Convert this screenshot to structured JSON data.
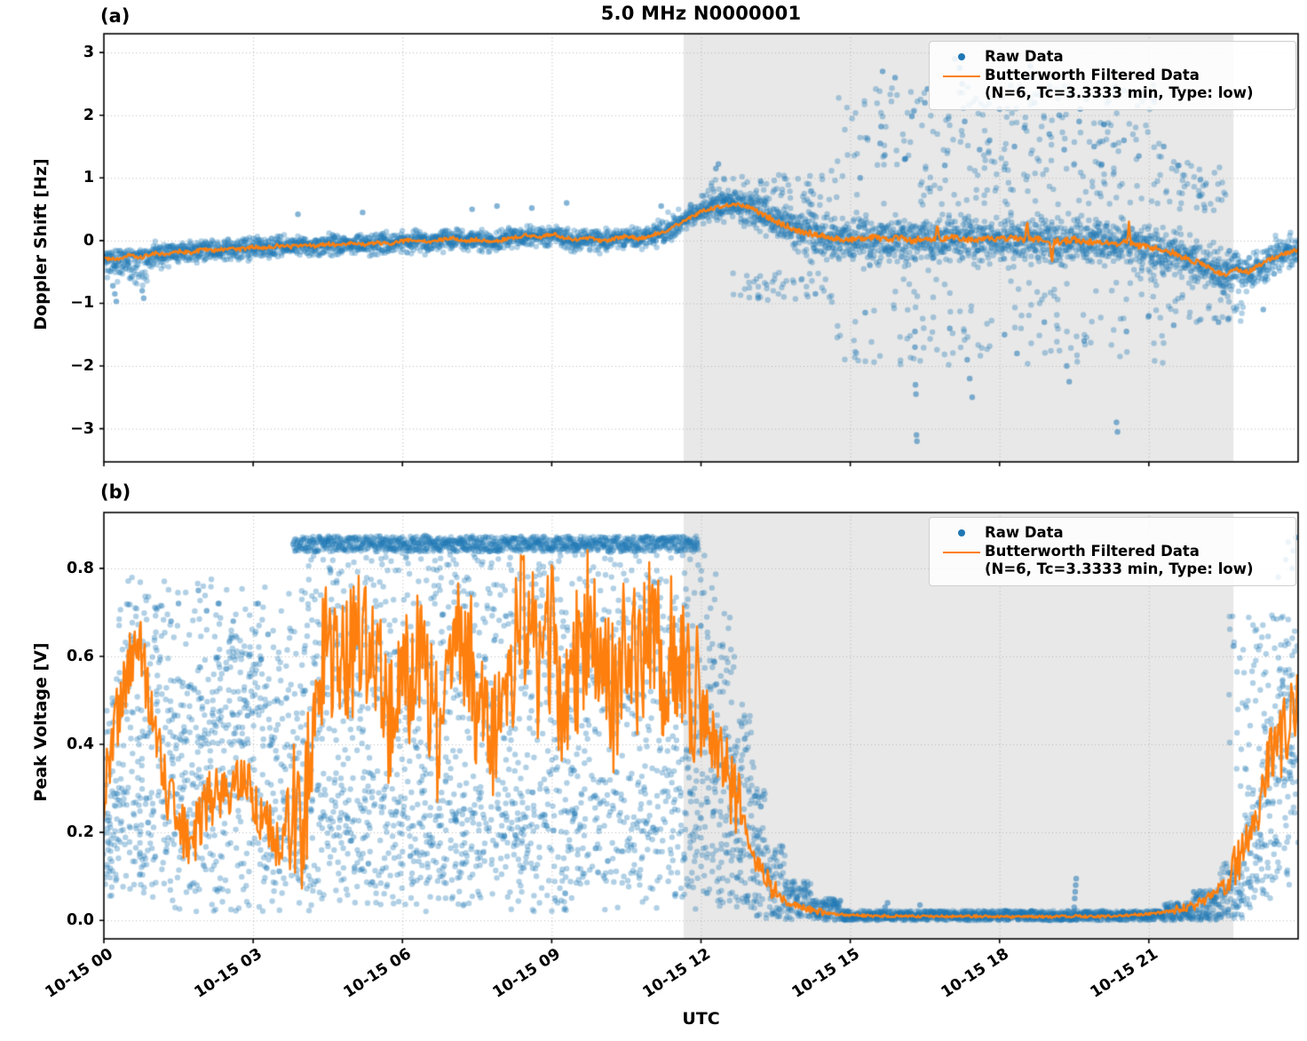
{
  "chart_data": {
    "type": "scatter",
    "title": "5.0 MHz N0000001",
    "xlabel": "UTC",
    "xlim_hours": [
      0,
      24
    ],
    "grid": "dotted",
    "legend_position": "upper right",
    "legend": {
      "raw_label": "Raw Data",
      "filtered_label": "Butterworth Filtered Data",
      "filtered_sublabel": "(N=6, Tc=3.3333 min, Type: low)"
    },
    "colors": {
      "raw": "#1f77b4",
      "filtered": "#ff7f0e",
      "shade": "#e8e8e8",
      "grid": "#b8b8b8",
      "axes": "#000000"
    },
    "xticks": {
      "hours": [
        0,
        3,
        6,
        9,
        12,
        15,
        18,
        21
      ],
      "labels": [
        "10-15 00",
        "10-15 03",
        "10-15 06",
        "10-15 09",
        "10-15 12",
        "10-15 15",
        "10-15 18",
        "10-15 21"
      ]
    },
    "shade_span_hours": [
      11.65,
      22.7
    ],
    "panels": [
      {
        "id": "a",
        "label": "(a)",
        "ylabel": "Doppler Shift [Hz]",
        "ylim": [
          -3.53,
          3.3
        ],
        "yticks": [
          3,
          2,
          1,
          0,
          -1,
          -2,
          -3
        ],
        "ytick_labels": [
          "3",
          "2",
          "1",
          "0",
          "−1",
          "−2",
          "−3"
        ],
        "seed": 11,
        "filtered": {
          "dt": 0.25,
          "v": [
            -0.28,
            -0.3,
            -0.24,
            -0.27,
            -0.2,
            -0.22,
            -0.17,
            -0.19,
            -0.14,
            -0.16,
            -0.12,
            -0.14,
            -0.1,
            -0.12,
            -0.08,
            -0.1,
            -0.06,
            -0.09,
            -0.05,
            -0.08,
            -0.04,
            -0.07,
            -0.03,
            -0.06,
            -0.01,
            0.02,
            -0.03,
            0.01,
            0.04,
            -0.01,
            0.02,
            -0.03,
            0.01,
            0.05,
            0.09,
            0.04,
            0.11,
            0.05,
            0.01,
            0.04,
            -0.01,
            0.03,
            0.07,
            0.03,
            0.09,
            0.14,
            0.24,
            0.36,
            0.46,
            0.52,
            0.56,
            0.58,
            0.52,
            0.42,
            0.31,
            0.22,
            0.15,
            0.1,
            0.06,
            0.04,
            0.02,
            0.03,
            0.05,
            0.02,
            0.04,
            0.0,
            0.05,
            0.02,
            0.06,
            0.03,
            0.0,
            0.04,
            0.02,
            0.05,
            0.0,
            0.03,
            0.0,
            -0.02,
            0.02,
            -0.03,
            0.0,
            -0.05,
            -0.03,
            -0.08,
            -0.1,
            -0.15,
            -0.2,
            -0.28,
            -0.35,
            -0.45,
            -0.55,
            -0.45,
            -0.5,
            -0.38,
            -0.27,
            -0.2,
            -0.15
          ],
          "osc_segments": [
            [
              0,
              13,
              0.03
            ],
            [
              13,
              22,
              0.05
            ],
            [
              22,
              24,
              0.035
            ]
          ],
          "spikes": [
            [
              16.75,
              0.3
            ],
            [
              18.55,
              0.38
            ],
            [
              19.05,
              -0.37
            ],
            [
              20.6,
              0.32
            ]
          ]
        },
        "raw": {
          "hw_segments": [
            [
              0,
              0.4,
              0.22,
              0.45
            ],
            [
              0.4,
              0.9,
              0.22,
              0.55
            ],
            [
              0.9,
              1.5,
              0.22,
              0.35
            ],
            [
              1.5,
              11,
              0.22,
              0.25
            ],
            [
              11,
              12,
              0.3,
              0.28
            ],
            [
              12,
              13,
              0.35,
              0.35
            ],
            [
              13,
              14,
              0.45,
              0.45
            ],
            [
              14,
              22.7,
              0.5,
              0.55
            ],
            [
              22.7,
              24,
              0.35,
              0.4
            ]
          ],
          "sparse": [
            {
              "t0": 14.6,
              "t1": 21.3,
              "lo": 0.55,
              "hi": 2.5,
              "n": 260
            },
            {
              "t0": 14.6,
              "t1": 21.3,
              "lo": -2.0,
              "hi": -0.6,
              "n": 130
            },
            {
              "t0": 12.1,
              "t1": 14.6,
              "lo": 0.5,
              "hi": 1.05,
              "n": 70
            },
            {
              "t0": 12.6,
              "t1": 14.6,
              "lo": -0.95,
              "hi": -0.5,
              "n": 45
            },
            {
              "t0": 21.3,
              "t1": 23.0,
              "lo": -1.3,
              "hi": -0.55,
              "n": 40
            },
            {
              "t0": 21.3,
              "t1": 22.6,
              "lo": 0.45,
              "hi": 1.3,
              "n": 45
            }
          ],
          "outliers": [
            [
              0.18,
              -0.72
            ],
            [
              0.22,
              -0.85
            ],
            [
              0.25,
              -0.97
            ],
            [
              0.77,
              -0.8
            ],
            [
              0.8,
              -0.92
            ],
            [
              3.9,
              0.42
            ],
            [
              5.2,
              0.45
            ],
            [
              7.4,
              0.5
            ],
            [
              7.9,
              0.55
            ],
            [
              8.6,
              0.52
            ],
            [
              9.3,
              0.6
            ],
            [
              11.2,
              0.55
            ],
            [
              12.3,
              1.15
            ],
            [
              12.35,
              1.22
            ],
            [
              13.2,
              0.95
            ],
            [
              14.3,
              -0.85
            ],
            [
              15.2,
              1.0
            ],
            [
              15.3,
              -1.15
            ],
            [
              15.6,
              1.55
            ],
            [
              15.62,
              1.82
            ],
            [
              15.65,
              2.7
            ],
            [
              15.9,
              2.6
            ],
            [
              16.1,
              1.3
            ],
            [
              16.3,
              -1.45
            ],
            [
              16.3,
              -1.7
            ],
            [
              16.31,
              -2.3
            ],
            [
              16.32,
              -2.45
            ],
            [
              16.33,
              -3.1
            ],
            [
              16.34,
              -3.2
            ],
            [
              16.5,
              2.2
            ],
            [
              16.55,
              2.42
            ],
            [
              16.9,
              1.2
            ],
            [
              17.0,
              -1.4
            ],
            [
              17.1,
              2.9
            ],
            [
              17.2,
              2.75
            ],
            [
              17.25,
              2.5
            ],
            [
              17.3,
              1.9
            ],
            [
              17.35,
              -1.9
            ],
            [
              17.4,
              -2.2
            ],
            [
              17.45,
              -2.5
            ],
            [
              17.6,
              1.45
            ],
            [
              17.8,
              1.6
            ],
            [
              17.85,
              2.95
            ],
            [
              18.0,
              2.1
            ],
            [
              18.05,
              2.3
            ],
            [
              18.1,
              -1.5
            ],
            [
              18.3,
              1.5
            ],
            [
              18.35,
              -1.8
            ],
            [
              18.5,
              1.8
            ],
            [
              18.6,
              2.6
            ],
            [
              18.62,
              2.78
            ],
            [
              18.7,
              2.2
            ],
            [
              18.9,
              -1.3
            ],
            [
              19.0,
              1.7
            ],
            [
              19.2,
              2.0
            ],
            [
              19.3,
              1.45
            ],
            [
              19.35,
              -2.0
            ],
            [
              19.4,
              -2.25
            ],
            [
              19.6,
              1.9
            ],
            [
              19.62,
              2.1
            ],
            [
              19.7,
              -1.6
            ],
            [
              19.9,
              1.5
            ],
            [
              20.1,
              1.85
            ],
            [
              20.3,
              2.7
            ],
            [
              20.32,
              2.45
            ],
            [
              20.35,
              -2.9
            ],
            [
              20.37,
              -3.05
            ],
            [
              20.5,
              1.6
            ],
            [
              20.55,
              -1.45
            ],
            [
              20.8,
              1.35
            ],
            [
              21.0,
              -1.2
            ],
            [
              21.3,
              1.5
            ],
            [
              21.5,
              -1.35
            ],
            [
              21.6,
              1.2
            ],
            [
              22.4,
              -1.3
            ],
            [
              23.3,
              -1.1
            ]
          ]
        }
      },
      {
        "id": "b",
        "label": "(b)",
        "ylabel": "Peak Voltage [V]",
        "ylim": [
          -0.042,
          0.927
        ],
        "yticks": [
          0.8,
          0.6,
          0.4,
          0.2,
          0.0
        ],
        "ytick_labels": [
          "0.8",
          "0.6",
          "0.4",
          "0.2",
          "0.0"
        ],
        "seed": 29,
        "clamp_lo": 0.002,
        "filtered": {
          "dt": 0.25,
          "v": [
            0.3,
            0.45,
            0.58,
            0.62,
            0.45,
            0.3,
            0.22,
            0.18,
            0.25,
            0.3,
            0.27,
            0.33,
            0.28,
            0.22,
            0.18,
            0.25,
            0.2,
            0.52,
            0.65,
            0.55,
            0.6,
            0.68,
            0.54,
            0.44,
            0.5,
            0.62,
            0.55,
            0.4,
            0.55,
            0.66,
            0.5,
            0.36,
            0.46,
            0.6,
            0.72,
            0.55,
            0.65,
            0.46,
            0.58,
            0.7,
            0.6,
            0.5,
            0.65,
            0.55,
            0.68,
            0.58,
            0.64,
            0.55,
            0.5,
            0.42,
            0.34,
            0.26,
            0.17,
            0.1,
            0.06,
            0.04,
            0.03,
            0.022,
            0.017,
            0.014,
            0.012,
            0.011,
            0.01,
            0.01,
            0.01,
            0.009,
            0.009,
            0.009,
            0.009,
            0.009,
            0.009,
            0.009,
            0.008,
            0.008,
            0.008,
            0.008,
            0.008,
            0.009,
            0.01,
            0.009,
            0.009,
            0.01,
            0.012,
            0.013,
            0.015,
            0.018,
            0.022,
            0.028,
            0.038,
            0.055,
            0.085,
            0.125,
            0.18,
            0.27,
            0.37,
            0.44,
            0.48
          ],
          "osc_segments": [
            [
              0,
              1,
              0.08
            ],
            [
              1,
              3.7,
              0.07
            ],
            [
              3.7,
              12,
              0.17
            ],
            [
              12,
              12.8,
              0.09
            ],
            [
              12.8,
              13.5,
              0.03
            ],
            [
              13.5,
              14.5,
              0.008
            ],
            [
              14.5,
              21.5,
              0.003
            ],
            [
              21.5,
              22.5,
              0.012
            ],
            [
              22.5,
              23.2,
              0.05
            ],
            [
              23.2,
              24,
              0.09
            ]
          ],
          "spikes": []
        },
        "raw": {
          "band_segments": [
            [
              0,
              0.3,
              0.08,
              0.55
            ],
            [
              0.3,
              1.0,
              0.1,
              0.78
            ],
            [
              1.0,
              1.3,
              0.05,
              0.72
            ],
            [
              1.3,
              2.2,
              0.02,
              0.55
            ],
            [
              2.2,
              3.2,
              0.02,
              0.65
            ],
            [
              3.2,
              3.7,
              0.02,
              0.55
            ],
            [
              3.7,
              4.1,
              0.08,
              0.75
            ],
            [
              4.1,
              11.9,
              0.08,
              0.875
            ],
            [
              11.9,
              12.3,
              0.06,
              0.875
            ],
            [
              12.3,
              12.7,
              0.04,
              0.72
            ],
            [
              12.7,
              13.0,
              0.02,
              0.5
            ],
            [
              13.0,
              13.3,
              0.01,
              0.3
            ],
            [
              13.3,
              13.7,
              0.005,
              0.17
            ],
            [
              13.7,
              14.2,
              0.002,
              0.09
            ],
            [
              14.2,
              14.8,
              0.0,
              0.05
            ],
            [
              14.8,
              21.3,
              0.0,
              0.022
            ],
            [
              21.3,
              21.9,
              0.0,
              0.04
            ],
            [
              21.9,
              22.4,
              0.0,
              0.07
            ],
            [
              22.4,
              22.9,
              0.005,
              0.13
            ],
            [
              22.9,
              23.3,
              0.02,
              0.3
            ],
            [
              23.3,
              23.6,
              0.05,
              0.45
            ],
            [
              23.6,
              23.85,
              0.08,
              0.6
            ],
            [
              23.85,
              24,
              0.12,
              0.68
            ]
          ],
          "cap": {
            "t0": 3.8,
            "t1": 11.95,
            "v": 0.873,
            "jitter": 0.035,
            "step": 0.008
          },
          "sparse": [
            {
              "t0": 0.05,
              "t1": 1.0,
              "lo": 0.05,
              "hi": 0.3,
              "n": 60
            },
            {
              "t0": 1.0,
              "t1": 3.7,
              "lo": 0.4,
              "hi": 0.78,
              "n": 140
            },
            {
              "t0": 3.8,
              "t1": 12.0,
              "lo": 0.02,
              "hi": 0.3,
              "n": 420
            },
            {
              "t0": 12.0,
              "t1": 13.2,
              "lo": 0.02,
              "hi": 0.4,
              "n": 80
            },
            {
              "t0": 22.6,
              "t1": 24.0,
              "lo": 0.3,
              "hi": 0.7,
              "n": 90
            }
          ],
          "outliers": [
            [
              1.35,
              0.68
            ],
            [
              1.5,
              0.72
            ],
            [
              1.9,
              0.75
            ],
            [
              2.3,
              0.72
            ],
            [
              2.6,
              0.68
            ],
            [
              3.1,
              0.72
            ],
            [
              3.3,
              0.65
            ],
            [
              15.7,
              0.03
            ],
            [
              15.75,
              0.04
            ],
            [
              16.4,
              0.035
            ],
            [
              19.5,
              0.03
            ],
            [
              19.51,
              0.05
            ],
            [
              19.52,
              0.065
            ],
            [
              19.53,
              0.08
            ],
            [
              19.54,
              0.095
            ],
            [
              23.6,
              0.78
            ],
            [
              23.75,
              0.82
            ],
            [
              23.8,
              0.86
            ],
            [
              23.88,
              0.8
            ],
            [
              23.9,
              0.84
            ],
            [
              23.95,
              0.87
            ]
          ]
        }
      }
    ]
  }
}
